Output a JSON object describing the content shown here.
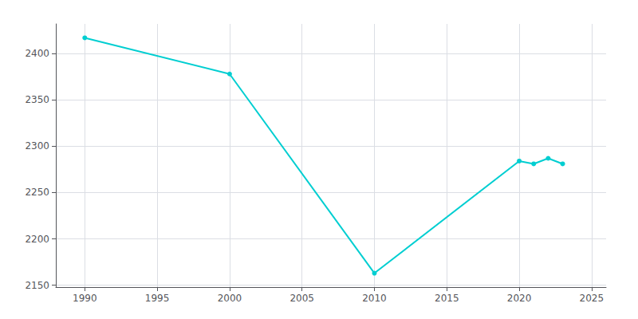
{
  "chart_data": {
    "type": "line",
    "x": [
      1990,
      2000,
      2010,
      2020,
      2021,
      2022,
      2023
    ],
    "values": [
      2417,
      2378,
      2163,
      2284,
      2281,
      2287,
      2281
    ],
    "color": "#00CED1",
    "marker": "circle",
    "xlim": [
      1988,
      2026
    ],
    "xticks": [
      1990,
      1995,
      2000,
      2005,
      2010,
      2015,
      2020,
      2025
    ],
    "ylim": [
      2148,
      2432
    ],
    "yticks": [
      2150,
      2200,
      2250,
      2300,
      2350,
      2400
    ],
    "grid": true
  }
}
